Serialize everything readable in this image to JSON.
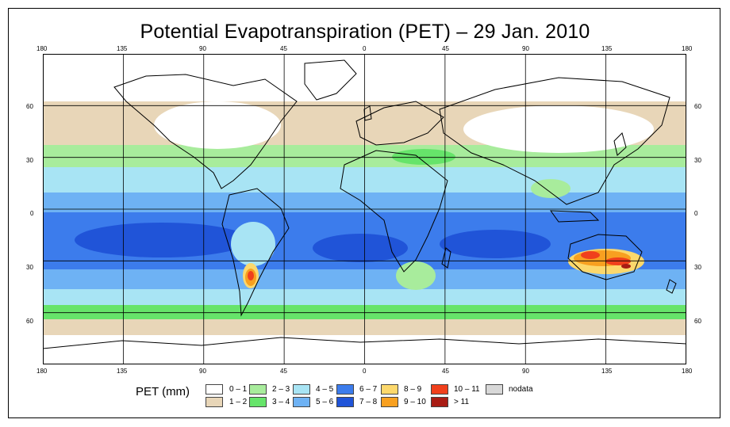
{
  "title": "Potential Evapotranspiration (PET) – 29 Jan. 2010",
  "axes": {
    "lon_labels": [
      "180",
      "135",
      "90",
      "45",
      "0",
      "45",
      "90",
      "135",
      "180"
    ],
    "lat_labels": [
      "60",
      "30",
      "0",
      "30",
      "60"
    ]
  },
  "legend": {
    "label": "PET (mm)",
    "items": [
      {
        "label": "0 – 1",
        "color": "#ffffff"
      },
      {
        "label": "1 – 2",
        "color": "#e8d6b8"
      },
      {
        "label": "2 – 3",
        "color": "#a8ec9c"
      },
      {
        "label": "3 – 4",
        "color": "#66e46a"
      },
      {
        "label": "4 – 5",
        "color": "#a8e4f4"
      },
      {
        "label": "5 – 6",
        "color": "#6eb2f4"
      },
      {
        "label": "6 – 7",
        "color": "#3c7cec"
      },
      {
        "label": "7 – 8",
        "color": "#2054d8"
      },
      {
        "label": "8 – 9",
        "color": "#fcd86c"
      },
      {
        "label": "9 – 10",
        "color": "#f8a020"
      },
      {
        "label": "10 – 11",
        "color": "#f0401c"
      },
      {
        "label": "> 11",
        "color": "#a81c14"
      },
      {
        "label": "nodata",
        "color": "#d8d8d8"
      }
    ]
  },
  "map_data": {
    "projection": "equirectangular",
    "lon_range": [
      -180,
      180
    ],
    "lat_range": [
      -90,
      90
    ],
    "graticule_step_deg": 45,
    "parallels_deg": [
      60,
      30,
      0,
      -30,
      -60
    ],
    "hotspots": [
      {
        "region": "Australia",
        "class": "10 – 11"
      },
      {
        "region": "Argentina",
        "class": "10 – 11"
      }
    ]
  }
}
